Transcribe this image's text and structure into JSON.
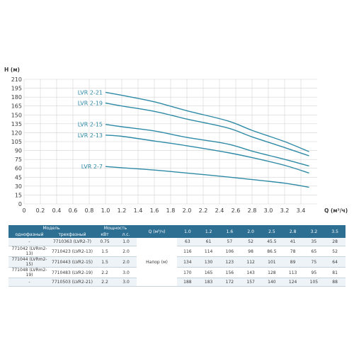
{
  "chart_data": {
    "type": "line",
    "ylabel": "H (м)",
    "xlabel": "Q (м³/ч)",
    "xlim": [
      0,
      3.6
    ],
    "ylim": [
      0,
      210
    ],
    "x_ticks": [
      "0",
      "0.2",
      "0.4",
      "0.6",
      "0.8",
      "1.0",
      "1.2",
      "1.4",
      "1.6",
      "1.8",
      "2.0",
      "2.2",
      "2.4",
      "2.6",
      "2.8",
      "3.0",
      "3.2",
      "3.4"
    ],
    "y_ticks": [
      "0",
      "15",
      "30",
      "45",
      "60",
      "75",
      "90",
      "105",
      "120",
      "135",
      "150",
      "165",
      "180",
      "195",
      "210"
    ],
    "grid": true,
    "colors": {
      "series": "#2e8aa6",
      "header": "#2d6f93",
      "grid": "#d4d4d4"
    },
    "series": [
      {
        "name": "LVR 2-21",
        "x": [
          1.0,
          1.2,
          1.6,
          2.0,
          2.5,
          2.8,
          3.2,
          3.5
        ],
        "values": [
          188,
          183,
          172,
          157,
          140,
          124,
          105,
          88
        ]
      },
      {
        "name": "LVR 2-19",
        "x": [
          1.0,
          1.2,
          1.6,
          2.0,
          2.5,
          2.8,
          3.2,
          3.5
        ],
        "values": [
          170,
          165,
          156,
          143,
          128,
          113,
          95,
          81
        ]
      },
      {
        "name": "LVR 2-15",
        "x": [
          1.0,
          1.2,
          1.6,
          2.0,
          2.5,
          2.8,
          3.2,
          3.5
        ],
        "values": [
          134,
          130,
          123,
          112,
          101,
          89,
          75,
          64
        ]
      },
      {
        "name": "LVR 2-13",
        "x": [
          1.0,
          1.2,
          1.6,
          2.0,
          2.5,
          2.8,
          3.2,
          3.5
        ],
        "values": [
          116,
          114,
          106,
          98,
          86.5,
          78,
          65,
          52
        ]
      },
      {
        "name": "LVR 2-7",
        "x": [
          1.0,
          1.2,
          1.6,
          2.0,
          2.5,
          2.8,
          3.2,
          3.5
        ],
        "values": [
          63,
          61,
          57,
          52,
          45.5,
          41,
          35,
          28
        ]
      }
    ]
  },
  "table": {
    "header_model": "Модель",
    "header_single_phase": "однофазный",
    "header_three_phase": "трехфазный",
    "header_power": "Мощность",
    "header_kw": "кВт",
    "header_hp": "л.с.",
    "header_q": "Q (м³/ч)",
    "q_values": [
      "1.0",
      "1.2",
      "1.6",
      "2.0",
      "2.5",
      "2.8",
      "3.2",
      "3.5"
    ],
    "head_label": "Напор (м)",
    "rows": [
      {
        "single": "-",
        "three": "7710363 (LVR2-7)",
        "kw": "0.75",
        "hp": "1.0",
        "h": [
          "63",
          "61",
          "57",
          "52",
          "45.5",
          "41",
          "35",
          "28"
        ]
      },
      {
        "single": "771042 (LVRm2-13)",
        "three": "7710423 (LVR2-13)",
        "kw": "1.5",
        "hp": "2.0",
        "h": [
          "116",
          "114",
          "106",
          "98",
          "86.5",
          "78",
          "65",
          "52"
        ]
      },
      {
        "single": "771044 (LVRm2-15)",
        "three": "7710443 (LVR2-15)",
        "kw": "1.5",
        "hp": "2.0",
        "h": [
          "134",
          "130",
          "123",
          "112",
          "101",
          "89",
          "75",
          "64"
        ]
      },
      {
        "single": "771048 (LVRm2-19)",
        "three": "7710483 (LVR2-19)",
        "kw": "2.2",
        "hp": "3.0",
        "h": [
          "170",
          "165",
          "156",
          "143",
          "128",
          "113",
          "95",
          "81"
        ]
      },
      {
        "single": "-",
        "three": "7710503 (LVR2-21)",
        "kw": "2.2",
        "hp": "3.0",
        "h": [
          "188",
          "183",
          "172",
          "157",
          "140",
          "124",
          "105",
          "88"
        ]
      }
    ]
  }
}
